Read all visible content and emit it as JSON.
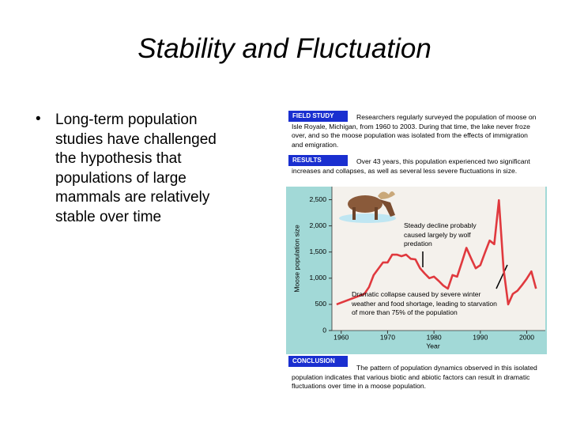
{
  "slide": {
    "title": "Stability and Fluctuation",
    "bullets": [
      "Long-term population studies have challenged the hypothesis that populations of large mammals are relatively stable over time"
    ]
  },
  "figure": {
    "field_study": {
      "tag": "FIELD STUDY",
      "text": "Researchers regularly surveyed the population of moose on Isle Royale, Michigan, from 1960 to 2003. During that time, the lake never froze over, and so the moose population was isolated from the effects of immigration and emigration."
    },
    "results": {
      "tag": "RESULTS",
      "text": "Over 43 years, this population experienced two significant increases and collapses, as well as several less severe fluctuations in size."
    },
    "conclusion": {
      "tag": "CONCLUSION",
      "text": "The pattern of population dynamics observed in this isolated population indicates that various biotic and abiotic factors can result in dramatic fluctuations over time in a moose population."
    }
  },
  "chart_data": {
    "type": "line",
    "x_label": "Year",
    "y_label": "Moose population size",
    "annotations": [
      "Steady decline probably caused largely by wolf predation",
      "Dramatic collapse caused by severe winter weather and food shortage, leading to starvation of more than 75% of the population"
    ],
    "x": [
      1959,
      1965,
      1966,
      1967,
      1969,
      1970,
      1971,
      1972,
      1973,
      1974,
      1975,
      1976,
      1977,
      1978,
      1979,
      1980,
      1981,
      1982,
      1983,
      1984,
      1985,
      1986,
      1987,
      1988,
      1989,
      1990,
      1991,
      1992,
      1993,
      1994,
      1995,
      1996,
      1997,
      1998,
      1999,
      2000,
      2001,
      2002
    ],
    "series": [
      {
        "color": "#e0393e",
        "values": [
          500,
          700,
          830,
          1060,
          1300,
          1300,
          1450,
          1450,
          1420,
          1450,
          1370,
          1360,
          1190,
          1090,
          1000,
          1030,
          950,
          860,
          800,
          1060,
          1030,
          1300,
          1580,
          1380,
          1190,
          1250,
          1490,
          1720,
          1650,
          2490,
          1180,
          500,
          700,
          760,
          870,
          990,
          1130,
          800
        ]
      }
    ],
    "xlim": [
      1958,
      2004
    ],
    "xticks": [
      1960,
      1970,
      1980,
      1990,
      2000
    ],
    "ylim": [
      0,
      2750
    ],
    "yticks": [
      0,
      500,
      {
        "value": 1000,
        "label": "1,000"
      },
      {
        "value": 1500,
        "label": "1,500"
      },
      {
        "value": 2000,
        "label": "2,000"
      },
      {
        "value": 2500,
        "label": "2,500"
      }
    ]
  }
}
